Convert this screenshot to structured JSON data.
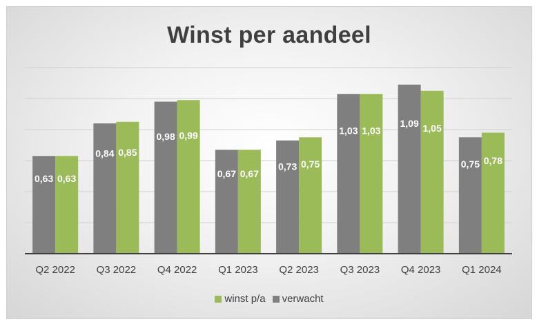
{
  "chart_data": {
    "type": "bar",
    "title": "Winst per aandeel",
    "xlabel": "",
    "ylabel": "",
    "ylim": [
      0,
      1.2
    ],
    "grid": true,
    "legend_position": "bottom",
    "categories": [
      "Q2 2022",
      "Q3 2022",
      "Q4 2022",
      "Q1 2023",
      "Q2 2023",
      "Q3 2023",
      "Q4 2023",
      "Q1 2024"
    ],
    "series": [
      {
        "name": "verwacht",
        "color": "#7f7f7f",
        "values": [
          0.63,
          0.84,
          0.98,
          0.67,
          0.73,
          1.03,
          1.09,
          0.75
        ],
        "labels": [
          "0,63",
          "0,84",
          "0,98",
          "0,67",
          "0,73",
          "1,03",
          "1,09",
          "0,75"
        ]
      },
      {
        "name": "winst p/a",
        "color": "#9bbb59",
        "values": [
          0.63,
          0.85,
          0.99,
          0.67,
          0.75,
          1.03,
          1.05,
          0.78
        ],
        "labels": [
          "0,63",
          "0,85",
          "0,99",
          "0,67",
          "0,75",
          "1,03",
          "1,05",
          "0,78"
        ]
      }
    ],
    "legend_order": [
      "winst p/a",
      "verwacht"
    ]
  }
}
